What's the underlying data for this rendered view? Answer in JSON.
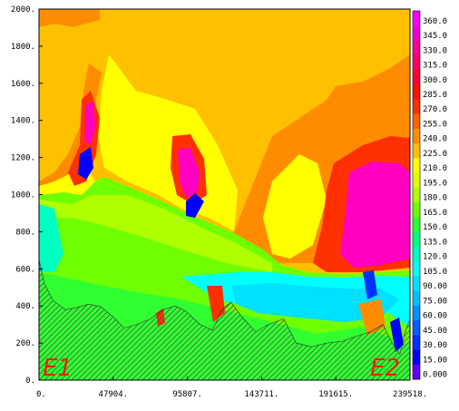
{
  "chart_data": {
    "type": "heatmap",
    "title": "",
    "xlabel": "",
    "ylabel": "",
    "xlim": [
      0,
      239518
    ],
    "ylim": [
      0,
      2000
    ],
    "x_ticks": [
      "0.",
      "47904.",
      "95807.",
      "143711.",
      "191615.",
      "239518."
    ],
    "y_ticks": [
      "0.",
      "200.",
      "400.",
      "600.",
      "800.",
      "1000.",
      "1200.",
      "1400.",
      "1600.",
      "1800.",
      "2000."
    ],
    "colorbar": {
      "levels": [
        "360.0",
        "345.0",
        "330.0",
        "315.0",
        "300.0",
        "285.0",
        "270.0",
        "255.0",
        "240.0",
        "225.0",
        "210.0",
        "195.0",
        "180.0",
        "165.0",
        "150.0",
        "135.0",
        "120.0",
        "105.0",
        "90.00",
        "75.00",
        "60.00",
        "45.00",
        "30.00",
        "15.00",
        "0.000"
      ],
      "colors": [
        "#ff00ff",
        "#f000d0",
        "#ff0090",
        "#ff0060",
        "#ff0030",
        "#ff1000",
        "#ff3000",
        "#ff6000",
        "#ff8c00",
        "#ffc000",
        "#ffff00",
        "#e0ff00",
        "#b0ff00",
        "#70ff00",
        "#30ff30",
        "#00ff80",
        "#00ffc0",
        "#00ffff",
        "#00e0ff",
        "#00c0ff",
        "#0090ff",
        "#0060ff",
        "#0030ff",
        "#0000ff",
        "#6000ff"
      ]
    },
    "terrain_profile": [
      [
        0,
        650
      ],
      [
        3500,
        520
      ],
      [
        9000,
        430
      ],
      [
        17000,
        380
      ],
      [
        24000,
        390
      ],
      [
        32000,
        410
      ],
      [
        40000,
        395
      ],
      [
        48000,
        340
      ],
      [
        55000,
        280
      ],
      [
        63000,
        300
      ],
      [
        72000,
        330
      ],
      [
        80000,
        380
      ],
      [
        88000,
        400
      ],
      [
        95000,
        370
      ],
      [
        104000,
        300
      ],
      [
        112000,
        270
      ],
      [
        118000,
        380
      ],
      [
        124000,
        420
      ],
      [
        131000,
        340
      ],
      [
        140000,
        260
      ],
      [
        148000,
        300
      ],
      [
        158000,
        330
      ],
      [
        166000,
        200
      ],
      [
        176000,
        180
      ],
      [
        186000,
        200
      ],
      [
        196000,
        210
      ],
      [
        206000,
        240
      ],
      [
        214000,
        260
      ],
      [
        222000,
        300
      ],
      [
        228000,
        200
      ],
      [
        233000,
        140
      ],
      [
        236000,
        250
      ],
      [
        239518,
        330
      ]
    ],
    "annotations": [
      "E1",
      "E2"
    ]
  }
}
